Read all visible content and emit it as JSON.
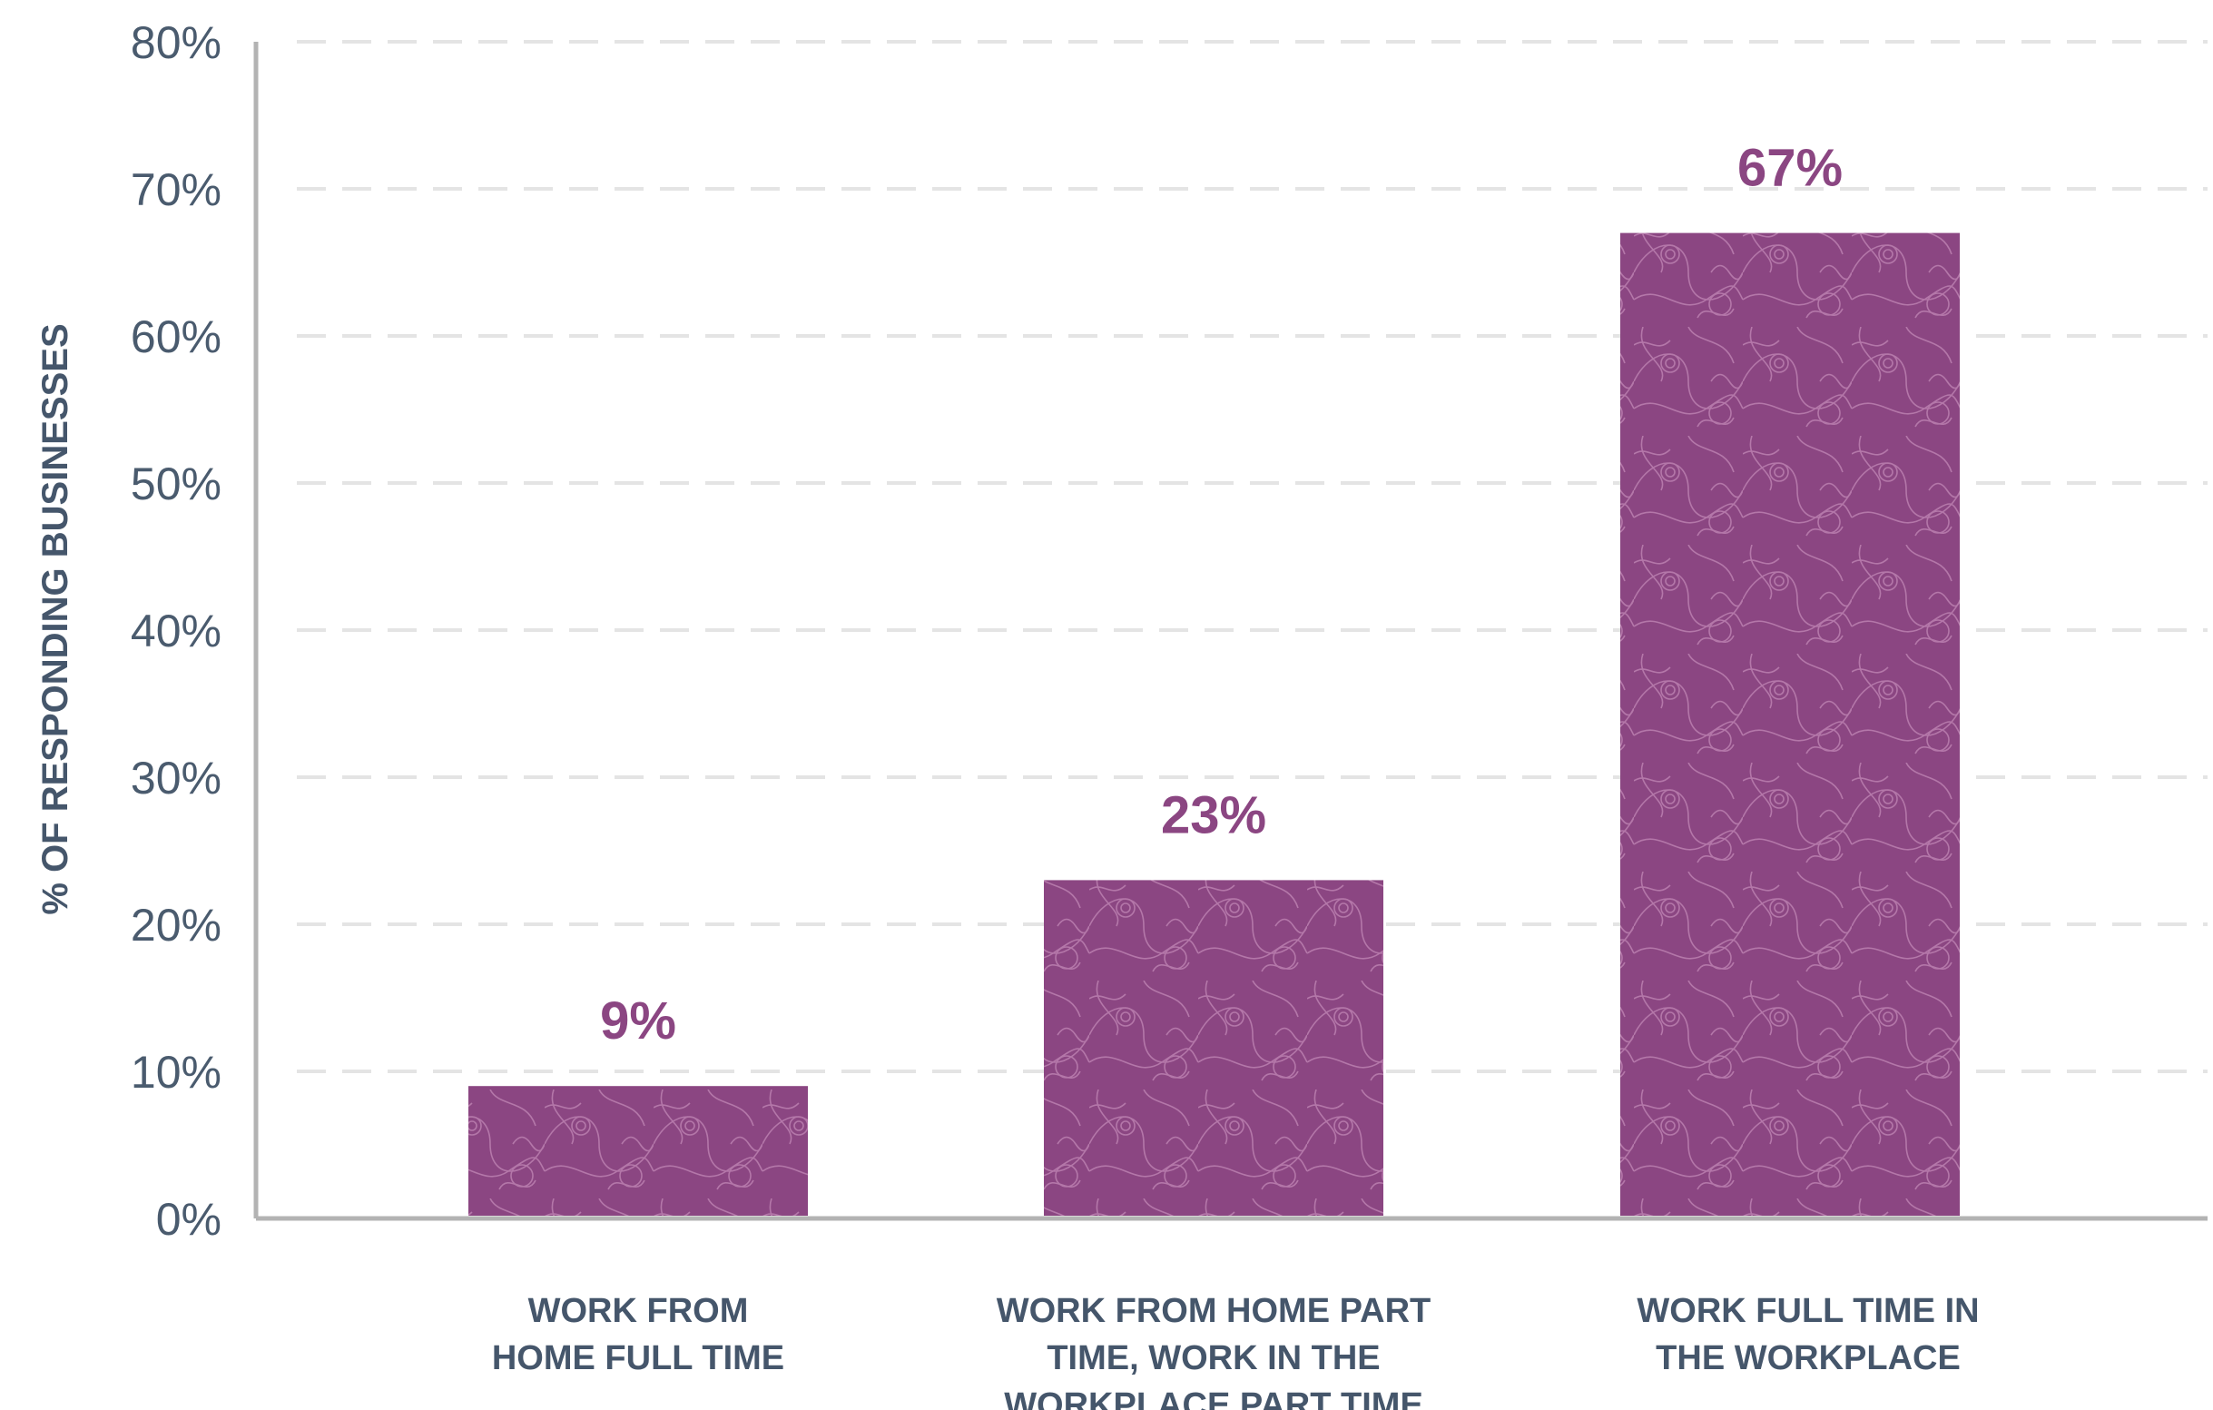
{
  "chart_data": {
    "type": "bar",
    "title": "",
    "xlabel": "",
    "ylabel": "% OF RESPONDING BUSINESSES",
    "ylim": [
      0,
      80
    ],
    "yticks": [
      0,
      10,
      20,
      30,
      40,
      50,
      60,
      70,
      80
    ],
    "ytick_labels": [
      "0%",
      "10%",
      "20%",
      "30%",
      "40%",
      "50%",
      "60%",
      "70%",
      "80%"
    ],
    "grid": true,
    "categories": [
      "WORK FROM HOME FULL TIME",
      "WORK FROM HOME PART TIME, WORK IN THE WORKPLACE PART TIME",
      "WORK FULL TIME IN THE WORKPLACE"
    ],
    "category_lines": [
      [
        "WORK FROM",
        "HOME FULL TIME"
      ],
      [
        "WORK FROM HOME PART",
        "TIME, WORK IN THE",
        "WORKPLACE PART TIME"
      ],
      [
        "WORK FULL TIME IN",
        "THE WORKPLACE"
      ]
    ],
    "values": [
      9,
      23,
      67
    ],
    "data_labels": [
      "9%",
      "23%",
      "67%"
    ],
    "colors": {
      "bar": "#8b4682",
      "bar_pattern": "#b477a9",
      "data_label": "#8b4682",
      "axis": "#b3b3b3",
      "grid": "#e4e4e4",
      "tick_text": "#4a5b6e",
      "category_text": "#45566b"
    }
  }
}
